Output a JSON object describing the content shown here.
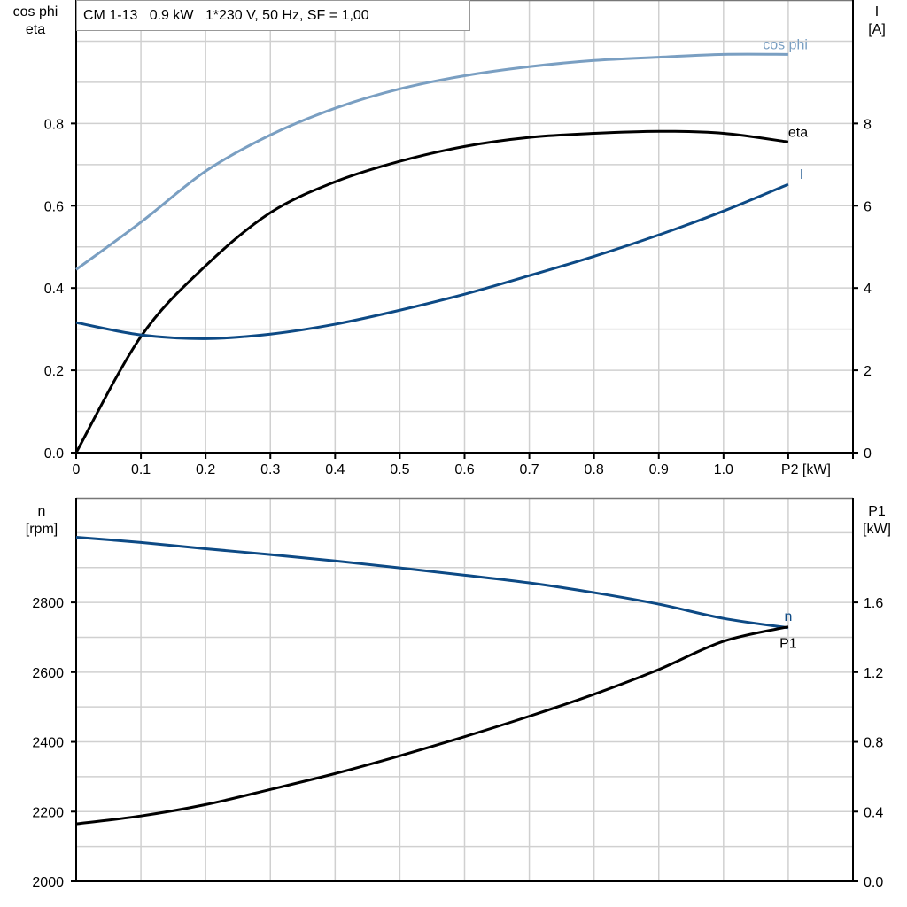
{
  "title": "CM 1-13   0.9 kW   1*230 V, 50 Hz, SF = 1,00",
  "colors": {
    "cosphi": "#7a9fc2",
    "eta": "#000000",
    "I": "#0d4a85",
    "n": "#0d4a85",
    "P1": "#000000",
    "grid": "#d0d0d0"
  },
  "chart_data": [
    {
      "type": "line",
      "x_label": "P2 [kW]",
      "x_range": [
        0,
        1.2
      ],
      "x_ticks": [
        "0",
        "0.1",
        "0.2",
        "0.3",
        "0.4",
        "0.5",
        "0.6",
        "0.7",
        "0.8",
        "0.9",
        "1.0"
      ],
      "y_left_label": [
        "cos phi",
        "eta"
      ],
      "y_left_range": [
        0,
        1.1
      ],
      "y_left_ticks": [
        "0.0",
        "0.2",
        "0.4",
        "0.6",
        "0.8"
      ],
      "y_right_label": [
        "I",
        "[A]"
      ],
      "y_right_range": [
        0,
        11
      ],
      "y_right_ticks": [
        "0",
        "2",
        "4",
        "6",
        "8"
      ],
      "grid": true,
      "x": [
        0,
        0.1,
        0.2,
        0.3,
        0.4,
        0.5,
        0.6,
        0.7,
        0.8,
        0.9,
        1.0,
        1.1
      ],
      "series": [
        {
          "name": "cos phi",
          "axis": "left",
          "color_key": "cosphi",
          "values": [
            0.445,
            0.56,
            0.684,
            0.772,
            0.837,
            0.884,
            0.916,
            0.938,
            0.953,
            0.961,
            0.968,
            0.968
          ]
        },
        {
          "name": "eta",
          "axis": "left",
          "color_key": "eta",
          "values": [
            0.0,
            0.282,
            0.454,
            0.583,
            0.658,
            0.708,
            0.744,
            0.766,
            0.776,
            0.781,
            0.776,
            0.755
          ]
        },
        {
          "name": "I",
          "axis": "right",
          "color_key": "I",
          "values": [
            3.16,
            2.86,
            2.77,
            2.88,
            3.12,
            3.46,
            3.85,
            4.3,
            4.77,
            5.29,
            5.87,
            6.52
          ]
        }
      ]
    },
    {
      "type": "line",
      "x_range": [
        0,
        1.2
      ],
      "y_left_label": [
        "n",
        "[rpm]"
      ],
      "y_left_range": [
        2000,
        3100
      ],
      "y_left_ticks": [
        "2000",
        "2200",
        "2400",
        "2600",
        "2800"
      ],
      "y_right_label": [
        "P1",
        "[kW]"
      ],
      "y_right_range": [
        0,
        2.2
      ],
      "y_right_ticks": [
        "0.0",
        "0.4",
        "0.8",
        "1.2",
        "1.6"
      ],
      "grid": true,
      "x": [
        0,
        0.1,
        0.2,
        0.3,
        0.4,
        0.5,
        0.6,
        0.7,
        0.8,
        0.9,
        1.0,
        1.1
      ],
      "series": [
        {
          "name": "n",
          "axis": "left",
          "color_key": "n",
          "values": [
            2987,
            2972,
            2954,
            2937,
            2919,
            2899,
            2878,
            2856,
            2828,
            2795,
            2754,
            2727
          ]
        },
        {
          "name": "P1",
          "axis": "right",
          "color_key": "P1",
          "values": [
            0.33,
            0.375,
            0.44,
            0.527,
            0.618,
            0.72,
            0.83,
            0.947,
            1.073,
            1.215,
            1.377,
            1.46
          ]
        }
      ]
    }
  ]
}
